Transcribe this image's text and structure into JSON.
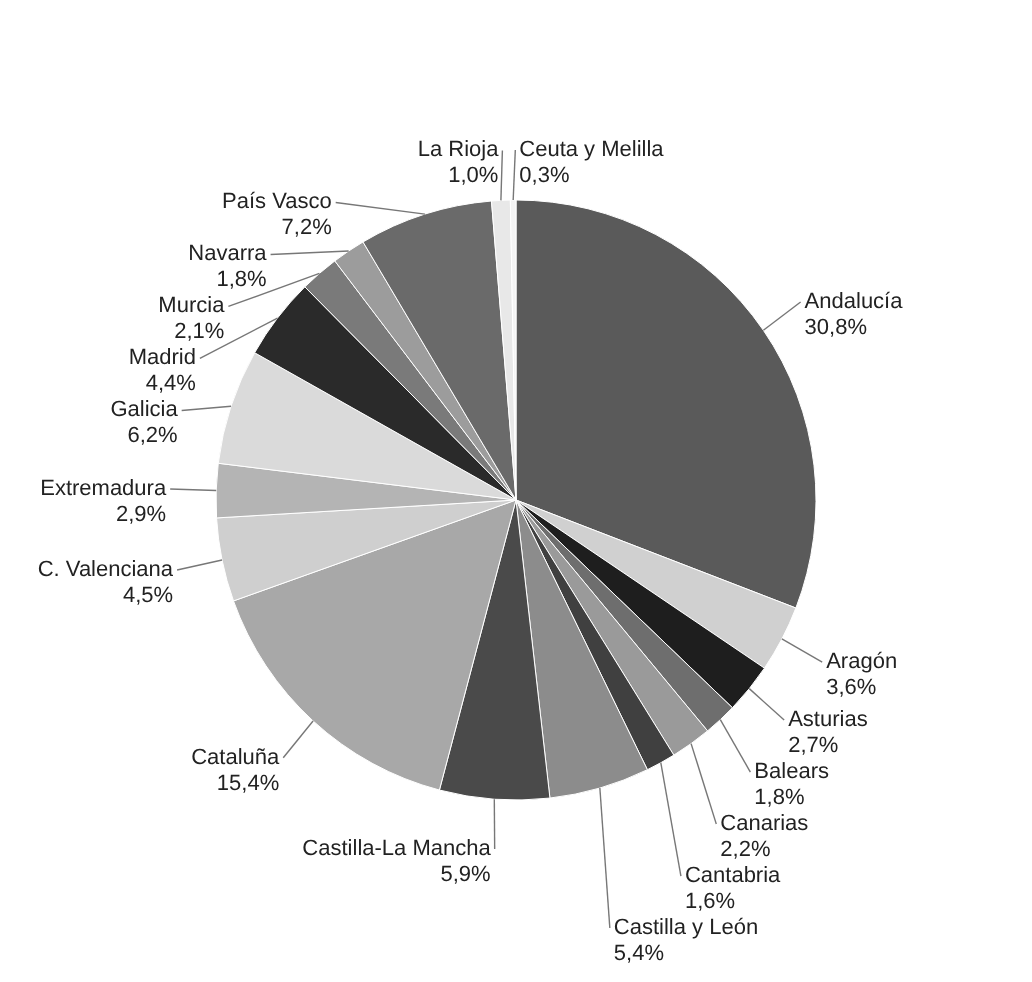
{
  "chart_data": {
    "type": "pie",
    "categories": [
      "Andalucía",
      "Aragón",
      "Asturias",
      "Balears",
      "Canarias",
      "Cantabria",
      "Castilla y León",
      "Castilla-La Mancha",
      "Cataluña",
      "C. Valenciana",
      "Extremadura",
      "Galicia",
      "Madrid",
      "Murcia",
      "Navarra",
      "País Vasco",
      "La Rioja",
      "Ceuta y Melilla"
    ],
    "values": [
      30.8,
      3.6,
      2.7,
      1.8,
      2.2,
      1.6,
      5.4,
      5.9,
      15.4,
      4.5,
      2.9,
      6.2,
      4.4,
      2.1,
      1.8,
      7.2,
      1.0,
      0.3
    ],
    "value_labels": [
      "30,8%",
      "3,6%",
      "2,7%",
      "1,8%",
      "2,2%",
      "1,6%",
      "5,4%",
      "5,9%",
      "15,4%",
      "4,5%",
      "2,9%",
      "6,2%",
      "4,4%",
      "2,1%",
      "1,8%",
      "7,2%",
      "1,0%",
      "0,3%"
    ],
    "colors": [
      "#5a5a5a",
      "#d0d0d0",
      "#1e1e1e",
      "#6e6e6e",
      "#9a9a9a",
      "#404040",
      "#8c8c8c",
      "#4a4a4a",
      "#a8a8a8",
      "#cfcfcf",
      "#b4b4b4",
      "#dadada",
      "#2a2a2a",
      "#7a7a7a",
      "#9c9c9c",
      "#6a6a6a",
      "#e8e8e8",
      "#f4f4f4"
    ]
  }
}
